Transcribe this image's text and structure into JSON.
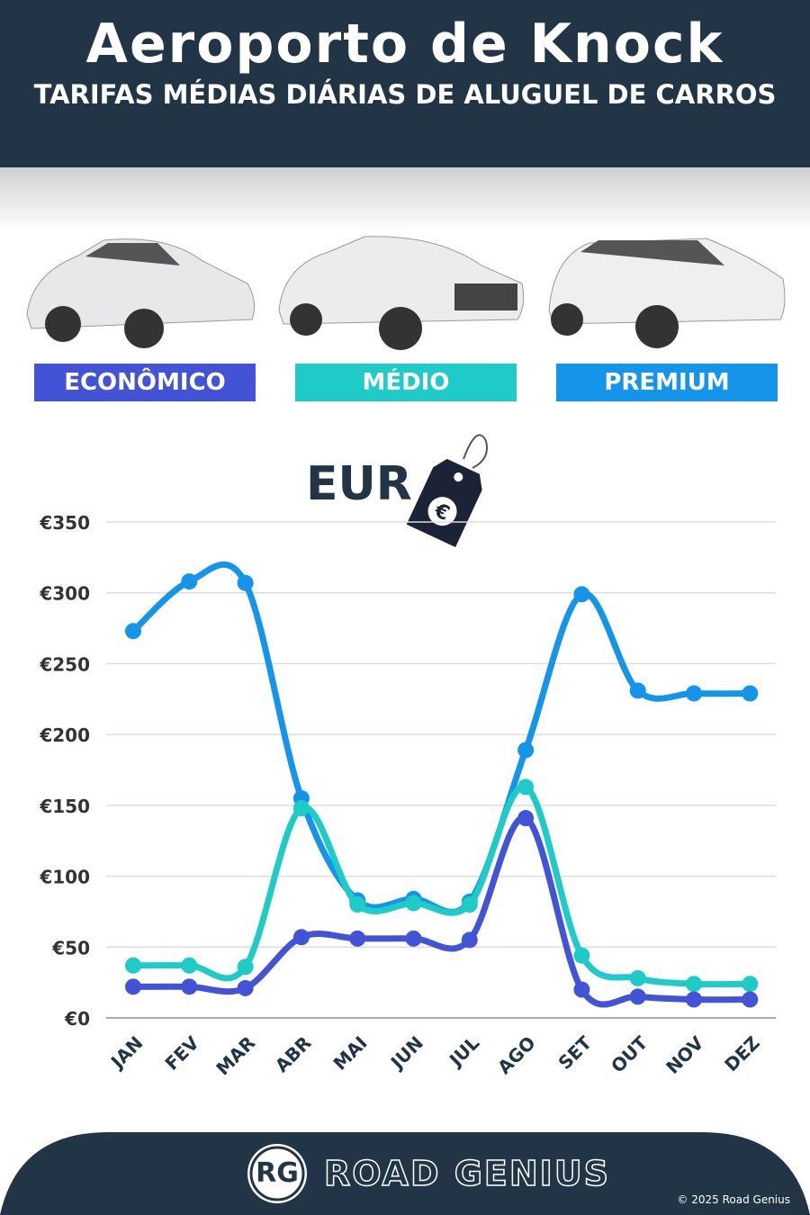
{
  "header": {
    "title": "Aeroporto de Knock",
    "subtitle": "TARIFAS MÉDIAS DIÁRIAS DE ALUGUEL DE CARROS"
  },
  "categories_badges": [
    {
      "label": "ECONÔMICO",
      "color": "#4353d6"
    },
    {
      "label": "MÉDIO",
      "color": "#1ecbc7"
    },
    {
      "label": "PREMIUM",
      "color": "#1495ea"
    }
  ],
  "currency_label": "EUR",
  "chart_data": {
    "type": "line",
    "categories": [
      "JAN",
      "FEV",
      "MAR",
      "ABR",
      "MAI",
      "JUN",
      "JUL",
      "AGO",
      "SET",
      "OUT",
      "NOV",
      "DEZ"
    ],
    "ylim": [
      0,
      350
    ],
    "yticks": [
      0,
      50,
      100,
      150,
      200,
      250,
      300,
      350
    ],
    "ytick_labels": [
      "€0",
      "€50",
      "€100",
      "€150",
      "€200",
      "€250",
      "€300",
      "€350"
    ],
    "grid": true,
    "series": [
      {
        "name": "PREMIUM",
        "color": "#1495ea",
        "values": [
          273,
          308,
          307,
          155,
          83,
          84,
          82,
          189,
          299,
          231,
          229,
          229
        ]
      },
      {
        "name": "MÉDIO",
        "color": "#1ecbc7",
        "values": [
          37,
          37,
          36,
          148,
          80,
          81,
          80,
          163,
          44,
          28,
          24,
          24
        ]
      },
      {
        "name": "ECONÔMICO",
        "color": "#4353d6",
        "values": [
          22,
          22,
          21,
          57,
          56,
          56,
          55,
          141,
          20,
          15,
          13,
          13
        ]
      }
    ]
  },
  "footer": {
    "logo_text": "RG",
    "brand": "ROAD GENIUS",
    "copyright": "© 2025 Road Genius"
  }
}
